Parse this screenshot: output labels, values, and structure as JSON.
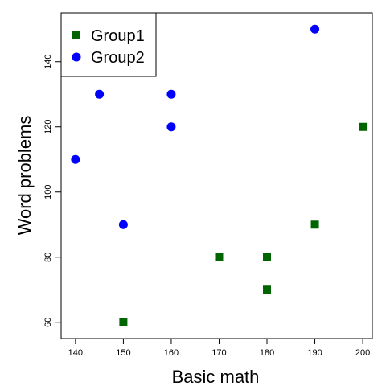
{
  "chart_data": {
    "type": "scatter",
    "title": "",
    "xlabel": "Basic math",
    "ylabel": "Word problems",
    "xlim": [
      137,
      202
    ],
    "ylim": [
      55,
      155
    ],
    "x_ticks": [
      140,
      150,
      160,
      170,
      180,
      190,
      200
    ],
    "y_ticks": [
      60,
      80,
      100,
      120,
      140
    ],
    "grid": false,
    "legend_position": "top-left",
    "series": [
      {
        "name": "Group1",
        "marker": "square",
        "color": "#006400",
        "points": [
          [
            150,
            60
          ],
          [
            170,
            80
          ],
          [
            180,
            80
          ],
          [
            180,
            70
          ],
          [
            190,
            90
          ],
          [
            200,
            120
          ]
        ]
      },
      {
        "name": "Group2",
        "marker": "circle",
        "color": "#0000ff",
        "points": [
          [
            140,
            110
          ],
          [
            145,
            130
          ],
          [
            150,
            90
          ],
          [
            160,
            130
          ],
          [
            160,
            120
          ],
          [
            190,
            150
          ]
        ]
      }
    ]
  }
}
